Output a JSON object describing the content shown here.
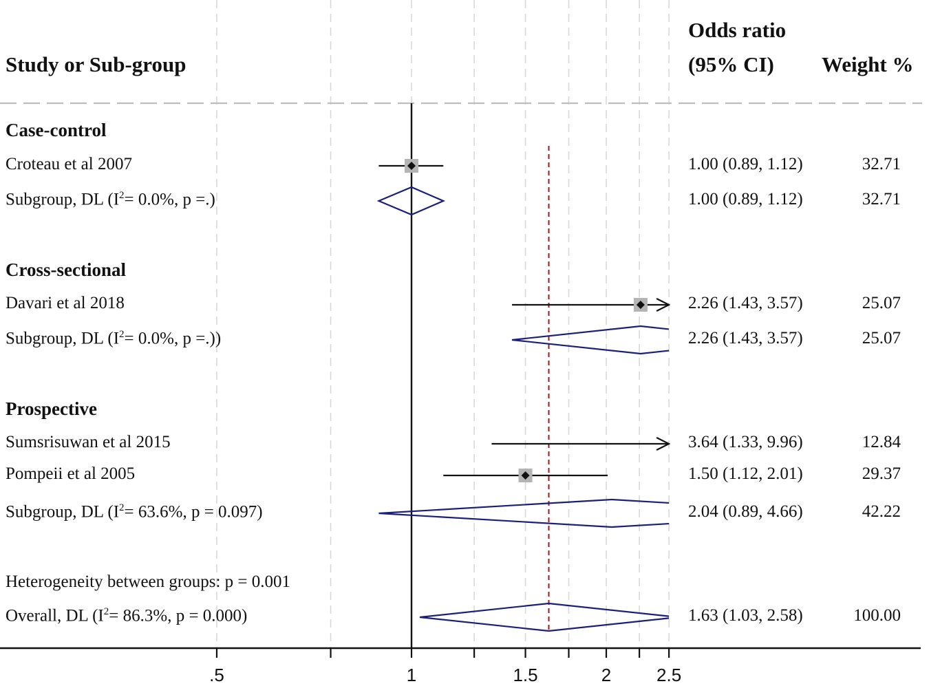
{
  "header": {
    "study_label": "Study or Sub-group",
    "or_label_line1": "Odds ratio",
    "or_label_line2": "(95% CI)",
    "weight_label": "Weight %"
  },
  "chart_data": {
    "type": "forest",
    "x_scale": "log",
    "xlim": [
      0.5,
      2.5
    ],
    "xticks": [
      0.5,
      0.75,
      1,
      1.25,
      1.5,
      1.75,
      2,
      2.25,
      2.5
    ],
    "xtick_labels": [
      {
        "value": 0.5,
        "label": ".5"
      },
      {
        "value": 1,
        "label": "1"
      },
      {
        "value": 1.5,
        "label": "1.5"
      },
      {
        "value": 2,
        "label": "2"
      },
      {
        "value": 2.5,
        "label": "2.5"
      }
    ],
    "null_line": 1,
    "overall_line": 1.63,
    "rows": [
      {
        "kind": "group",
        "label": "Case-control"
      },
      {
        "kind": "study",
        "label": "Croteau et al 2007",
        "or": 1.0,
        "lo": 0.89,
        "hi": 1.12,
        "ci_text": "1.00 (0.89, 1.12)",
        "weight": "32.71"
      },
      {
        "kind": "subgroup",
        "label_pre": "Subgroup, DL  (I",
        "label_sup": "2",
        "label_post": "= 0.0%, p =.)",
        "or": 1.0,
        "lo": 0.89,
        "hi": 1.12,
        "ci_text": "1.00 (0.89, 1.12)",
        "weight": "32.71"
      },
      {
        "kind": "group",
        "label": "Cross-sectional"
      },
      {
        "kind": "study",
        "label": "Davari et al 2018",
        "or": 2.26,
        "lo": 1.43,
        "hi": 3.57,
        "ci_text": "2.26 (1.43, 3.57)",
        "weight": "25.07"
      },
      {
        "kind": "subgroup",
        "label_pre": "Subgroup, DL  (I",
        "label_sup": "2",
        "label_post": "= 0.0%, p =.))",
        "or": 2.26,
        "lo": 1.43,
        "hi": 3.57,
        "ci_text": "2.26 (1.43, 3.57)",
        "weight": "25.07"
      },
      {
        "kind": "group",
        "label": "Prospective"
      },
      {
        "kind": "study",
        "label": "Sumsrisuwan et al 2015",
        "or": 3.64,
        "lo": 1.33,
        "hi": 9.96,
        "ci_text": "3.64 (1.33, 9.96)",
        "weight": "12.84",
        "marker": false
      },
      {
        "kind": "study",
        "label": "Pompeii et al 2005",
        "or": 1.5,
        "lo": 1.12,
        "hi": 2.01,
        "ci_text": "1.50 (1.12, 2.01)",
        "weight": "29.37"
      },
      {
        "kind": "subgroup",
        "label_pre": "Subgroup, DL  (I",
        "label_sup": "2",
        "label_post": "= 63.6%, p = 0.097)",
        "or": 2.04,
        "lo": 0.89,
        "hi": 4.66,
        "ci_text": "2.04 (0.89, 4.66)",
        "weight": "42.22"
      },
      {
        "kind": "note",
        "label": "Heterogeneity between groups: p = 0.001"
      },
      {
        "kind": "overall",
        "label_pre": "Overall, DL (I",
        "label_sup": "2",
        "label_post": "= 86.3%, p = 0.000)",
        "or": 1.63,
        "lo": 1.03,
        "hi": 2.58,
        "ci_text": "1.63 (1.03, 2.58)",
        "weight": "100.00"
      }
    ]
  },
  "colors": {
    "diamond": "#1c1f78",
    "overall_line": "#9b1b1b",
    "marker_box": "#b4b4b4",
    "grid": "#d8d8d8",
    "ink": "#111111"
  }
}
